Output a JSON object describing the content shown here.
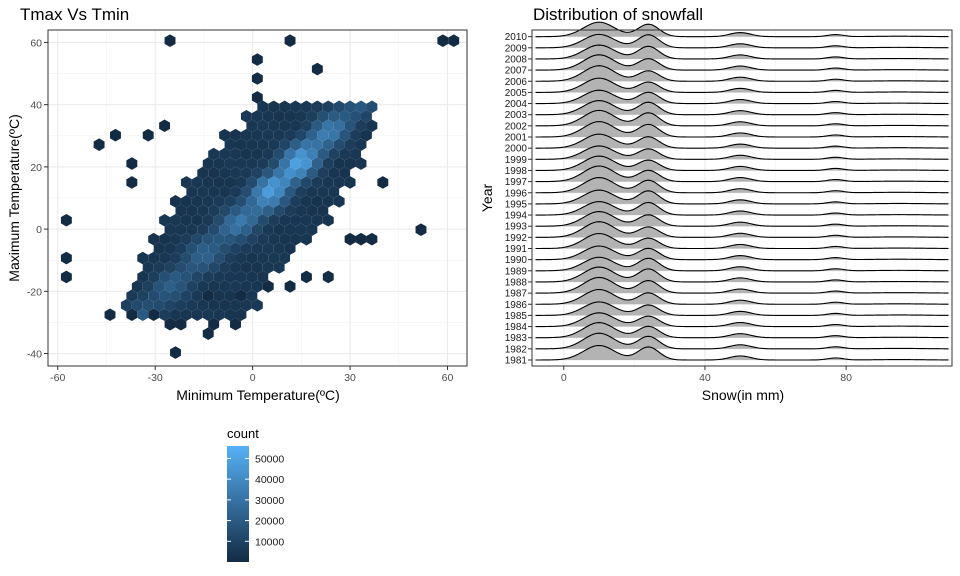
{
  "chart_data": [
    {
      "type": "hexbin",
      "title": "Tmax Vs Tmin",
      "xlabel": "Minimum Temperature(ºC)",
      "ylabel": "Maximum Temperature(ºC)",
      "xlim": [
        -63,
        66
      ],
      "ylim": [
        -44,
        64
      ],
      "x_ticks": [
        -60,
        -30,
        0,
        30,
        60
      ],
      "y_ticks": [
        -40,
        -20,
        0,
        20,
        40,
        60
      ],
      "x_tick_labels": [
        "-60",
        "-30",
        "0",
        "30",
        "60"
      ],
      "y_tick_labels": [
        "-40",
        "-20",
        "0",
        "20",
        "40",
        "60"
      ],
      "grid": true,
      "legend": {
        "title": "count",
        "position": "bottom",
        "min": 0,
        "max": 56000,
        "ticks": [
          10000,
          20000,
          30000,
          40000,
          50000
        ],
        "tick_labels": [
          "10000",
          "20000",
          "30000",
          "40000",
          "50000"
        ],
        "color_low": "#132b43",
        "color_high": "#56b1f7"
      },
      "core_region": {
        "tmin_range": [
          -45,
          38
        ],
        "tmax_range": [
          -30,
          40
        ],
        "diagonal_offset": 7,
        "peak": [
          12,
          25
        ],
        "peak_count": 55000
      },
      "outlier_hexes": [
        {
          "x": -26,
          "y": 60
        },
        {
          "x": 10,
          "y": 60
        },
        {
          "x": 58,
          "y": 60
        },
        {
          "x": 62,
          "y": 60
        },
        {
          "x": 2,
          "y": 55
        },
        {
          "x": 20,
          "y": 52
        },
        {
          "x": 2,
          "y": 49
        },
        {
          "x": 2,
          "y": 43
        },
        {
          "x": -48,
          "y": 26
        },
        {
          "x": -42,
          "y": 29
        },
        {
          "x": -32,
          "y": 29
        },
        {
          "x": -26,
          "y": 32
        },
        {
          "x": -38,
          "y": 20
        },
        {
          "x": -38,
          "y": 14
        },
        {
          "x": -58,
          "y": 3
        },
        {
          "x": -58,
          "y": -8
        },
        {
          "x": -58,
          "y": -14
        },
        {
          "x": 52,
          "y": 0
        },
        {
          "x": 40,
          "y": 14
        },
        {
          "x": 38,
          "y": -3
        },
        {
          "x": 34,
          "y": -3
        },
        {
          "x": 30,
          "y": -3
        },
        {
          "x": -44,
          "y": -28
        },
        {
          "x": -36,
          "y": -28
        },
        {
          "x": -30,
          "y": -28
        },
        {
          "x": -26,
          "y": -31
        },
        {
          "x": -22,
          "y": -31
        },
        {
          "x": -12,
          "y": -31
        },
        {
          "x": -6,
          "y": -31
        },
        {
          "x": -12,
          "y": -34
        },
        {
          "x": -24,
          "y": -40
        },
        {
          "x": -14,
          "y": -20
        },
        {
          "x": 22,
          "y": -14
        },
        {
          "x": 16,
          "y": -14
        },
        {
          "x": 12,
          "y": -17
        },
        {
          "x": 4,
          "y": -17
        },
        {
          "x": -2,
          "y": -20
        }
      ]
    },
    {
      "type": "ridgeline",
      "title": "Distribution of snowfall",
      "xlabel": "Snow(in mm)",
      "ylabel": "Year",
      "xlim": [
        -9,
        110
      ],
      "x_ticks": [
        0,
        40,
        80
      ],
      "x_tick_labels": [
        "0",
        "40",
        "80"
      ],
      "grid": true,
      "categories": [
        "1981",
        "1982",
        "1983",
        "1984",
        "1985",
        "1986",
        "1987",
        "1988",
        "1989",
        "1990",
        "1991",
        "1992",
        "1993",
        "1994",
        "1995",
        "1996",
        "1997",
        "1998",
        "1999",
        "2000",
        "2001",
        "2002",
        "2003",
        "2004",
        "2005",
        "2006",
        "2007",
        "2008",
        "2009",
        "2010"
      ],
      "mode_snow_mm": [
        10,
        24,
        50,
        77
      ],
      "fill_color": "#b3b3b3",
      "line_color": "#000000"
    }
  ]
}
